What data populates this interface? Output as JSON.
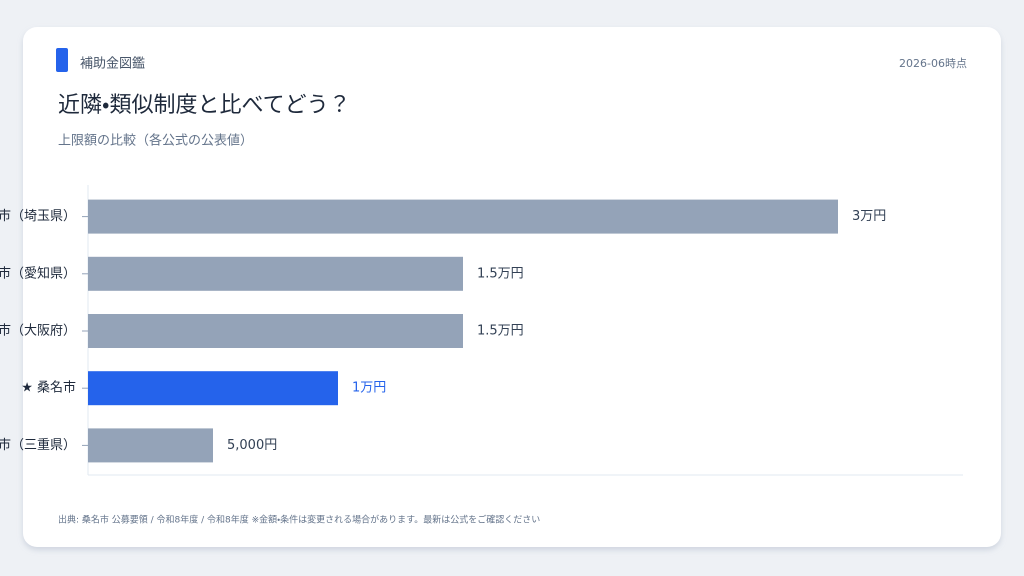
{
  "chart_data": {
    "type": "hbar",
    "brand": "補助金図鑑",
    "date": "2026-06時点",
    "title": "近隣・類似制度と比べてどう？",
    "subtitle": "上限額の比較（各公式の公表値）",
    "note": "出典: 桑名市 公募要領 / 令和8年度 / 令和8年度 ※金額・条件は変更される場合があります。最新は公式をご確認ください",
    "categories": [
      "市（埼玉県）",
      "市（愛知県）",
      "市（大阪府）",
      "★ 桑名市",
      "市（三重県）"
    ],
    "values": [
      30000,
      15000,
      15000,
      10000,
      5000
    ],
    "value_labels": [
      "3万円",
      "1.5万円",
      "1.5万円",
      "1万円",
      "5,000円"
    ],
    "colors": [
      "#94a3b8",
      "#94a3b8",
      "#94a3b8",
      "#2563eb",
      "#94a3b8"
    ],
    "xlim": [
      0,
      35000
    ]
  }
}
